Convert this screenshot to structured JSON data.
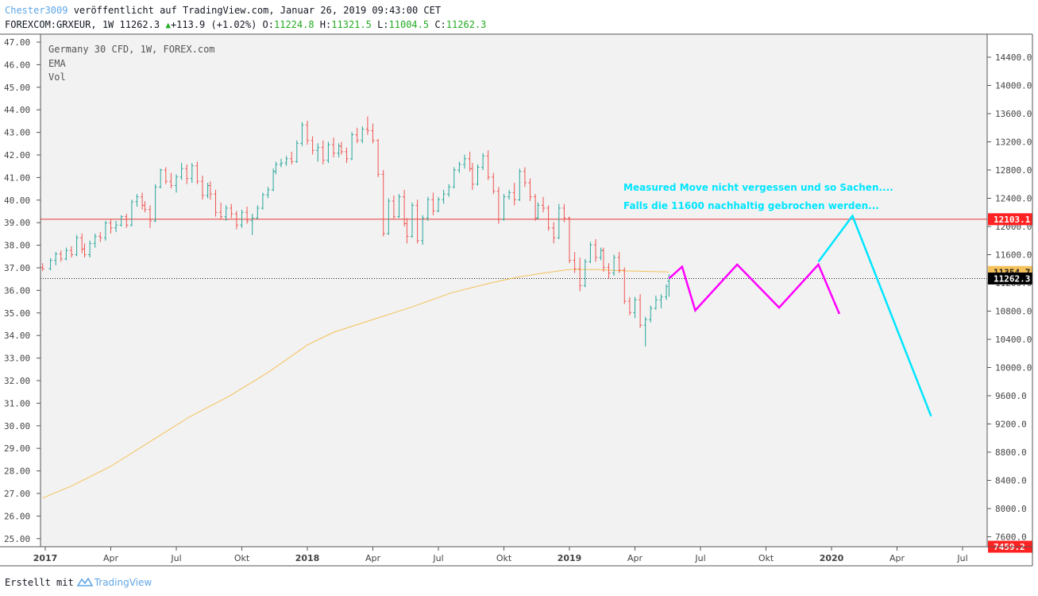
{
  "header": {
    "user": "Chester3009",
    "published_text": " veröffentlicht auf TradingView.com, Januar 26, 2019 09:43:00 CET",
    "symbol_text": "FOREXCOM:GRXEUR, 1W 11262.3",
    "change_text": "+113.9 (+1.02%)",
    "o_label": " O:",
    "o_value": "11224.8",
    "h_label": " H:",
    "h_value": "11321.5",
    "l_label": " L:",
    "l_value": "11004.5",
    "c_label": " C:",
    "c_value": "11262.3"
  },
  "legend": {
    "line1": "Germany 30 CFD, 1W, FOREX.com",
    "line2": "EMA",
    "line3": "Vol"
  },
  "footer": {
    "text": "Erstellt mit",
    "brand": "TradingView"
  },
  "colors": {
    "up": "#26a69a",
    "down": "#ef5350",
    "ema": "#f5c15a",
    "hline": "#e53935",
    "magenta": "#ff00ff",
    "cyan": "#00e5ff",
    "annotation": "#00e5ff",
    "plot_bg": "#f2f2f2"
  },
  "chart_data": {
    "type": "line",
    "right_axis_ticks": [
      "14400.0",
      "14000.0",
      "13600.0",
      "13200.0",
      "12800.0",
      "12400.0",
      "12000.0",
      "11600.0",
      "11200.0",
      "10800.0",
      "10400.0",
      "10000.0",
      "9600.0",
      "9200.0",
      "8800.0",
      "8400.0",
      "8000.0",
      "7600.0"
    ],
    "left_axis_ticks": [
      "47.00",
      "46.00",
      "45.00",
      "44.00",
      "43.00",
      "42.00",
      "41.00",
      "40.00",
      "39.00",
      "38.00",
      "37.00",
      "36.00",
      "35.00",
      "34.00",
      "33.00",
      "32.00",
      "31.00",
      "30.00",
      "29.00",
      "28.00",
      "27.00",
      "26.00",
      "25.00"
    ],
    "x_axis_labels": [
      "2017",
      "Apr",
      "Jul",
      "Okt",
      "2018",
      "Apr",
      "Jul",
      "Okt",
      "2019",
      "Apr",
      "Jul",
      "Okt",
      "2020",
      "Apr",
      "Jul"
    ],
    "x_axis_bold": [
      "2017",
      "2018",
      "2019",
      "2020"
    ],
    "price_labels": [
      {
        "text": "12103.1",
        "kind": "red"
      },
      {
        "text": "11354.7",
        "kind": "ema"
      },
      {
        "text": "11262.3",
        "kind": "last"
      },
      {
        "text": "7459.2",
        "kind": "red"
      }
    ],
    "horizontal_levels": {
      "resistance": 12103.1,
      "last_close": 11262.3,
      "bottom": 7459.2
    },
    "candles": [
      [
        2016.99,
        11420,
        11480,
        11370,
        11400
      ],
      [
        2017.02,
        11400,
        11550,
        11380,
        11520
      ],
      [
        2017.04,
        11520,
        11640,
        11450,
        11610
      ],
      [
        2017.06,
        11610,
        11660,
        11500,
        11540
      ],
      [
        2017.08,
        11540,
        11700,
        11520,
        11660
      ],
      [
        2017.1,
        11660,
        11720,
        11560,
        11600
      ],
      [
        2017.12,
        11600,
        11880,
        11580,
        11840
      ],
      [
        2017.14,
        11840,
        11900,
        11620,
        11680
      ],
      [
        2017.15,
        11680,
        11760,
        11560,
        11600
      ],
      [
        2017.17,
        11600,
        11800,
        11560,
        11760
      ],
      [
        2017.19,
        11760,
        11900,
        11700,
        11860
      ],
      [
        2017.21,
        11860,
        11920,
        11780,
        11840
      ],
      [
        2017.23,
        11840,
        12080,
        11800,
        12050
      ],
      [
        2017.25,
        12050,
        12100,
        11900,
        11980
      ],
      [
        2017.27,
        11980,
        12080,
        11920,
        12020
      ],
      [
        2017.29,
        12020,
        12160,
        12000,
        12140
      ],
      [
        2017.31,
        12140,
        12180,
        11980,
        12020
      ],
      [
        2017.33,
        12020,
        12380,
        12000,
        12350
      ],
      [
        2017.35,
        12350,
        12460,
        12280,
        12420
      ],
      [
        2017.37,
        12420,
        12480,
        12240,
        12300
      ],
      [
        2017.38,
        12300,
        12360,
        12200,
        12240
      ],
      [
        2017.4,
        12240,
        12300,
        11980,
        12080
      ],
      [
        2017.42,
        12080,
        12600,
        12060,
        12560
      ],
      [
        2017.44,
        12560,
        12820,
        12540,
        12800
      ],
      [
        2017.46,
        12800,
        12840,
        12600,
        12640
      ],
      [
        2017.48,
        12640,
        12760,
        12540,
        12580
      ],
      [
        2017.5,
        12580,
        12740,
        12480,
        12700
      ],
      [
        2017.52,
        12700,
        12900,
        12660,
        12820
      ],
      [
        2017.54,
        12820,
        12880,
        12600,
        12680
      ],
      [
        2017.56,
        12680,
        12900,
        12620,
        12860
      ],
      [
        2017.58,
        12860,
        12920,
        12600,
        12640
      ],
      [
        2017.6,
        12640,
        12720,
        12380,
        12440
      ],
      [
        2017.62,
        12440,
        12620,
        12400,
        12580
      ],
      [
        2017.63,
        12580,
        12640,
        12380,
        12460
      ],
      [
        2017.65,
        12460,
        12520,
        12140,
        12200
      ],
      [
        2017.67,
        12200,
        12340,
        12100,
        12140
      ],
      [
        2017.69,
        12140,
        12300,
        12080,
        12260
      ],
      [
        2017.71,
        12260,
        12320,
        12120,
        12180
      ],
      [
        2017.73,
        12180,
        12220,
        11960,
        12020
      ],
      [
        2017.75,
        12020,
        12240,
        11980,
        12200
      ],
      [
        2017.77,
        12200,
        12280,
        12040,
        12080
      ],
      [
        2017.79,
        12080,
        12180,
        11880,
        12120
      ],
      [
        2017.81,
        12120,
        12300,
        12100,
        12260
      ],
      [
        2017.83,
        12260,
        12480,
        12240,
        12450
      ],
      [
        2017.85,
        12450,
        12560,
        12400,
        12520
      ],
      [
        2017.87,
        12520,
        12820,
        12500,
        12780
      ],
      [
        2017.88,
        12780,
        12920,
        12740,
        12880
      ],
      [
        2017.9,
        12880,
        12960,
        12840,
        12900
      ],
      [
        2017.92,
        12900,
        13000,
        12860,
        12960
      ],
      [
        2017.94,
        12960,
        13060,
        12880,
        12920
      ],
      [
        2017.96,
        12920,
        13220,
        12900,
        13180
      ],
      [
        2017.98,
        13180,
        13480,
        13140,
        13440
      ],
      [
        2018.0,
        13440,
        13500,
        13160,
        13220
      ],
      [
        2018.02,
        13220,
        13280,
        13020,
        13080
      ],
      [
        2018.04,
        13080,
        13180,
        12920,
        13120
      ],
      [
        2018.06,
        13120,
        13220,
        12880,
        12940
      ],
      [
        2018.08,
        12940,
        13200,
        12900,
        13160
      ],
      [
        2018.1,
        13160,
        13260,
        12980,
        13040
      ],
      [
        2018.12,
        13040,
        13180,
        12980,
        13140
      ],
      [
        2018.13,
        13140,
        13200,
        13020,
        13060
      ],
      [
        2018.15,
        13060,
        13120,
        12900,
        12960
      ],
      [
        2018.17,
        12960,
        13340,
        12940,
        13300
      ],
      [
        2018.19,
        13300,
        13400,
        13180,
        13220
      ],
      [
        2018.21,
        13220,
        13420,
        13180,
        13380
      ],
      [
        2018.23,
        13380,
        13560,
        13300,
        13360
      ],
      [
        2018.25,
        13360,
        13460,
        13180,
        13220
      ],
      [
        2018.27,
        13220,
        13240,
        12700,
        12740
      ],
      [
        2018.29,
        12740,
        12800,
        11860,
        11900
      ],
      [
        2018.31,
        11900,
        12400,
        11880,
        12360
      ],
      [
        2018.33,
        12360,
        12440,
        12100,
        12140
      ],
      [
        2018.35,
        12140,
        12460,
        12120,
        12420
      ],
      [
        2018.37,
        12420,
        12520,
        12000,
        12040
      ],
      [
        2018.38,
        12040,
        12120,
        11760,
        11860
      ],
      [
        2018.4,
        11860,
        12340,
        11840,
        12300
      ],
      [
        2018.42,
        12300,
        12380,
        11760,
        11800
      ],
      [
        2018.44,
        11800,
        12160,
        11740,
        12120
      ],
      [
        2018.46,
        12120,
        12420,
        12080,
        12380
      ],
      [
        2018.48,
        12380,
        12480,
        12160,
        12220
      ],
      [
        2018.5,
        12220,
        12420,
        12200,
        12380
      ],
      [
        2018.52,
        12380,
        12520,
        12320,
        12460
      ],
      [
        2018.54,
        12460,
        12600,
        12420,
        12560
      ],
      [
        2018.56,
        12560,
        12840,
        12540,
        12800
      ],
      [
        2018.58,
        12800,
        12920,
        12760,
        12880
      ],
      [
        2018.6,
        12880,
        13020,
        12820,
        12960
      ],
      [
        2018.62,
        12960,
        13060,
        12780,
        12820
      ],
      [
        2018.63,
        12820,
        12900,
        12520,
        12600
      ],
      [
        2018.65,
        12600,
        12880,
        12580,
        12840
      ],
      [
        2018.67,
        12840,
        13040,
        12800,
        13000
      ],
      [
        2018.69,
        13000,
        13080,
        12660,
        12700
      ],
      [
        2018.71,
        12700,
        12760,
        12460,
        12500
      ],
      [
        2018.73,
        12500,
        12560,
        12040,
        12100
      ],
      [
        2018.75,
        12100,
        12460,
        12080,
        12420
      ],
      [
        2018.77,
        12420,
        12520,
        12380,
        12480
      ],
      [
        2018.79,
        12480,
        12620,
        12300,
        12380
      ],
      [
        2018.81,
        12380,
        12820,
        12360,
        12780
      ],
      [
        2018.83,
        12780,
        12840,
        12560,
        12620
      ],
      [
        2018.85,
        12620,
        12680,
        12360,
        12420
      ],
      [
        2018.87,
        12420,
        12460,
        12080,
        12120
      ],
      [
        2018.88,
        12120,
        12340,
        12100,
        12300
      ],
      [
        2018.9,
        12300,
        12420,
        12200,
        12260
      ],
      [
        2018.92,
        12260,
        12300,
        11940,
        11980
      ],
      [
        2018.94,
        11980,
        12060,
        11760,
        11840
      ],
      [
        2018.96,
        11840,
        12320,
        11820,
        12260
      ],
      [
        2018.98,
        12260,
        12320,
        12060,
        12120
      ],
      [
        2019.0,
        12120,
        12140,
        11480,
        11520
      ],
      [
        2019.02,
        11520,
        11640,
        11340,
        11400
      ],
      [
        2019.04,
        11400,
        11560,
        11080,
        11160
      ],
      [
        2019.06,
        11160,
        11540,
        11140,
        11500
      ],
      [
        2019.08,
        11500,
        11780,
        11480,
        11740
      ],
      [
        2019.1,
        11740,
        11820,
        11500,
        11560
      ],
      [
        2019.12,
        11560,
        11700,
        11520,
        11660
      ],
      [
        2019.13,
        11660,
        11700,
        11360,
        11420
      ],
      [
        2019.15,
        11420,
        11480,
        11260,
        11340
      ],
      [
        2019.17,
        11340,
        11600,
        11300,
        11560
      ],
      [
        2019.19,
        11560,
        11640,
        11340,
        11380
      ],
      [
        2019.21,
        11380,
        11420,
        10900,
        10940
      ],
      [
        2019.23,
        10940,
        11000,
        10740,
        10780
      ],
      [
        2019.25,
        10780,
        11000,
        10700,
        10960
      ],
      [
        2019.27,
        10960,
        11040,
        10560,
        10600
      ],
      [
        2019.29,
        10600,
        10720,
        10300,
        10680
      ],
      [
        2019.31,
        10680,
        10880,
        10640,
        10840
      ],
      [
        2019.33,
        10840,
        11020,
        10820,
        10960
      ],
      [
        2019.35,
        10960,
        11040,
        10840,
        11000
      ],
      [
        2019.37,
        11000,
        11180,
        10960,
        11148
      ],
      [
        2019.38,
        11224.8,
        11321.5,
        11004.5,
        11262.3
      ]
    ],
    "ema_points": [
      [
        2016.99,
        8150
      ],
      [
        2017.1,
        8320
      ],
      [
        2017.25,
        8600
      ],
      [
        2017.4,
        8950
      ],
      [
        2017.55,
        9300
      ],
      [
        2017.7,
        9590
      ],
      [
        2017.85,
        9930
      ],
      [
        2018.0,
        10320
      ],
      [
        2018.1,
        10500
      ],
      [
        2018.25,
        10680
      ],
      [
        2018.4,
        10860
      ],
      [
        2018.55,
        11060
      ],
      [
        2018.7,
        11200
      ],
      [
        2018.8,
        11280
      ],
      [
        2018.9,
        11340
      ],
      [
        2019.0,
        11390
      ],
      [
        2019.1,
        11390
      ],
      [
        2019.2,
        11372
      ],
      [
        2019.3,
        11362
      ],
      [
        2019.38,
        11354.7
      ]
    ],
    "projection_magenta": [
      [
        2019.38,
        11262.3
      ],
      [
        2019.43,
        11430
      ],
      [
        2019.48,
        10810
      ],
      [
        2019.64,
        11460
      ],
      [
        2019.8,
        10850
      ],
      [
        2019.95,
        11460
      ],
      [
        2020.03,
        10760
      ]
    ],
    "projection_cyan": [
      [
        2019.95,
        11500
      ],
      [
        2020.08,
        12150
      ],
      [
        2020.38,
        9310
      ]
    ],
    "annotations": [
      "Measured Move nicht vergessen und so Sachen....",
      "Falls die 11600 nachhaltig gebrochen werden..."
    ]
  }
}
